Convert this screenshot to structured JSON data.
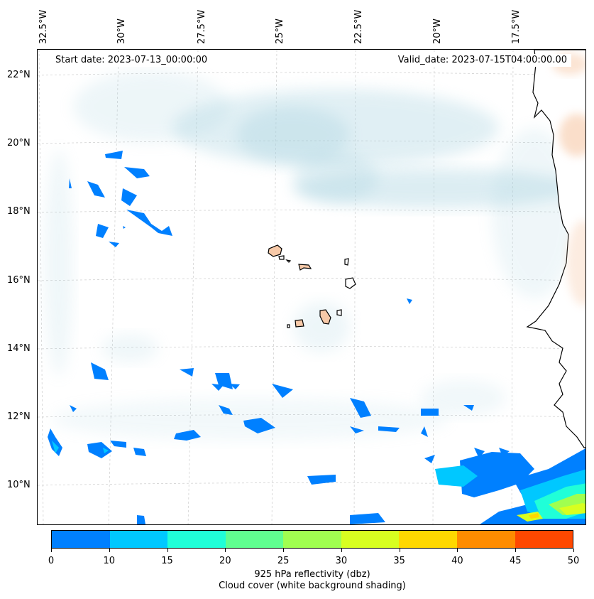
{
  "map": {
    "start_date": "Start date: 2023-07-13_00:00:00",
    "valid_date": "Valid_date: 2023-07-15T04:00:00.00",
    "lon_labels": [
      "32.5°W",
      "30°W",
      "27.5°W",
      "25°W",
      "22.5°W",
      "20°W",
      "17.5°W"
    ],
    "lat_labels": [
      "22°N",
      "20°N",
      "18°N",
      "16°N",
      "14°N",
      "12°N",
      "10°N"
    ]
  },
  "colorbar": {
    "ticks": [
      "0",
      "10",
      "15",
      "20",
      "25",
      "30",
      "35",
      "40",
      "45",
      "50"
    ],
    "colors": [
      "#0080ff",
      "#00c8ff",
      "#20ffd8",
      "#60ff90",
      "#a0ff50",
      "#d8ff20",
      "#ffd800",
      "#ff8c00",
      "#ff4800"
    ],
    "title_line1": "925 hPa reflectivity (dbz)",
    "title_line2": "Cloud cover (white background shading)"
  },
  "colors": {
    "cloud": "#a9d3e0",
    "land": "#f7c9a8",
    "coast": "#000000"
  }
}
